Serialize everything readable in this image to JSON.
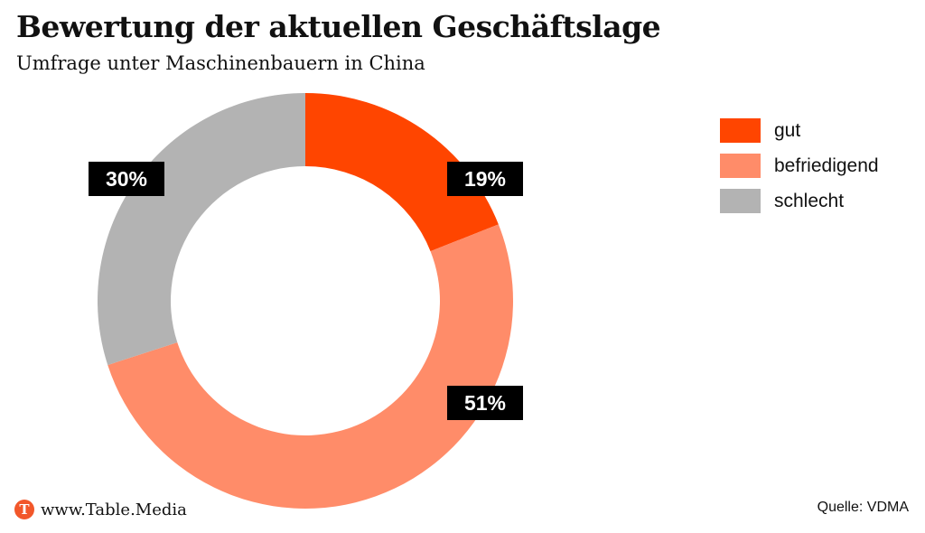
{
  "chart_data": {
    "type": "pie",
    "donut": true,
    "title": "Bewertung der aktuellen Geschäftslage",
    "subtitle": "Umfrage unter Maschinenbauern in China",
    "categories": [
      "gut",
      "befriedigend",
      "schlecht"
    ],
    "values": [
      19,
      51,
      30
    ],
    "value_labels": [
      "19%",
      "51%",
      "30%"
    ],
    "colors": [
      "#ff4500",
      "#ff8c69",
      "#b3b3b3"
    ],
    "legend_placement": "right",
    "start_angle": "12 o'clock, clockwise"
  },
  "footer": {
    "brand_logo_letter": "T",
    "brand": "www.Table.Media",
    "source": "Quelle: VDMA"
  }
}
